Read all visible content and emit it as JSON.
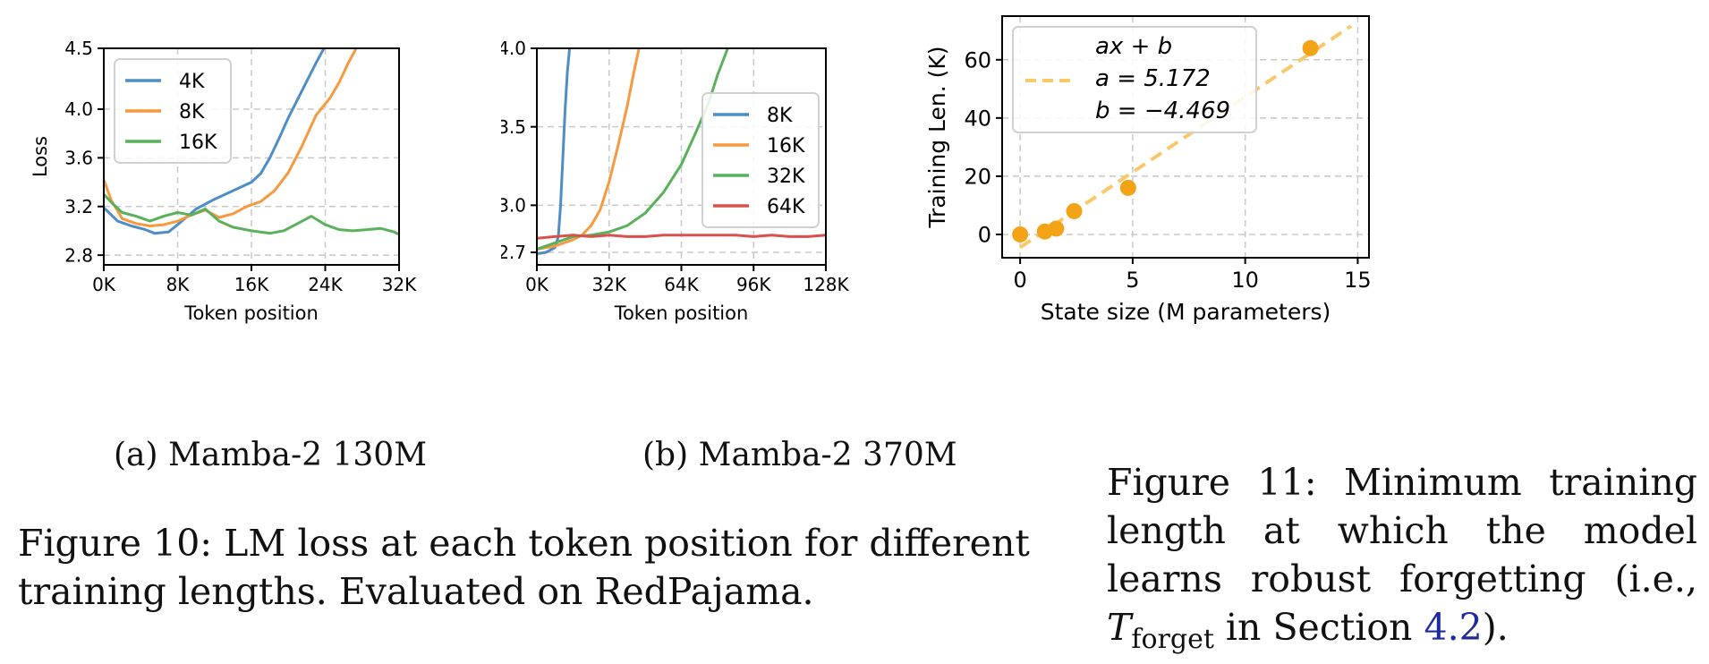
{
  "colors": {
    "4K": "#4e8dc6",
    "8K": "#f6993f",
    "16K": "#5bb05b",
    "32K": "#5bb05b",
    "64K": "#d9504c",
    "fit": "#f9c86b",
    "point": "#f3a316",
    "grid": "#c8c8c8"
  },
  "chart_data": [
    {
      "id": "a",
      "type": "line",
      "xlabel": "Token position",
      "ylabel": "Loss",
      "xlim": [
        0,
        32000
      ],
      "ylim": [
        2.72,
        4.5
      ],
      "xticks": [
        0,
        8000,
        16000,
        24000,
        32000
      ],
      "xticklabels": [
        "0K",
        "8K",
        "16K",
        "24K",
        "32K"
      ],
      "yticks": [
        2.8,
        3.2,
        3.6,
        4.0,
        4.5
      ],
      "yticklabels": [
        "2.8",
        "3.2",
        "3.6",
        "4.0",
        "4.5"
      ],
      "grid": true,
      "legend": "top-left",
      "series": [
        {
          "name": "4K",
          "color_key": "4K",
          "x": [
            0,
            1500,
            3000,
            4500,
            5500,
            7000,
            8000,
            10000,
            12000,
            14000,
            16000,
            17000,
            18000,
            19000,
            20000,
            21000,
            22000,
            23000,
            24000
          ],
          "y": [
            3.19,
            3.08,
            3.04,
            3.01,
            2.98,
            2.99,
            3.05,
            3.18,
            3.26,
            3.33,
            3.4,
            3.47,
            3.6,
            3.76,
            3.93,
            4.08,
            4.23,
            4.38,
            4.52
          ]
        },
        {
          "name": "8K",
          "color_key": "8K",
          "x": [
            0,
            800,
            2000,
            3500,
            5000,
            6500,
            8000,
            9500,
            11000,
            12500,
            14000,
            15500,
            17000,
            18500,
            20000,
            21500,
            23000,
            24500,
            25500,
            26500,
            27500
          ],
          "y": [
            3.42,
            3.25,
            3.1,
            3.06,
            3.04,
            3.05,
            3.08,
            3.13,
            3.17,
            3.11,
            3.14,
            3.2,
            3.24,
            3.33,
            3.48,
            3.7,
            3.95,
            4.09,
            4.22,
            4.38,
            4.52
          ]
        },
        {
          "name": "16K",
          "color_key": "16K",
          "x": [
            0,
            1000,
            2000,
            3500,
            5000,
            6500,
            8000,
            9500,
            11000,
            12500,
            14000,
            16000,
            18000,
            19500,
            21000,
            22500,
            24000,
            25500,
            27000,
            28500,
            30000,
            31500,
            32000
          ],
          "y": [
            3.3,
            3.22,
            3.15,
            3.12,
            3.08,
            3.12,
            3.15,
            3.13,
            3.18,
            3.08,
            3.03,
            3.0,
            2.98,
            3.0,
            3.06,
            3.12,
            3.05,
            3.01,
            3.0,
            3.01,
            3.02,
            2.99,
            2.97
          ]
        }
      ]
    },
    {
      "id": "b",
      "type": "line",
      "xlabel": "Token position",
      "ylabel": "Loss",
      "xlim": [
        0,
        128000
      ],
      "ylim": [
        2.62,
        4.0
      ],
      "xticks": [
        0,
        32000,
        64000,
        96000,
        128000
      ],
      "xticklabels": [
        "0K",
        "32K",
        "64K",
        "96K",
        "128K"
      ],
      "yticks": [
        2.7,
        3.0,
        3.5,
        4.0
      ],
      "yticklabels": [
        "2.7",
        "3.0",
        "3.5",
        "4.0"
      ],
      "grid": true,
      "legend": "center-right",
      "series": [
        {
          "name": "8K",
          "color_key": "4K",
          "x": [
            0,
            4000,
            8000,
            9500,
            10500,
            11500,
            12500,
            13500,
            14500,
            15500
          ],
          "y": [
            2.69,
            2.7,
            2.73,
            2.8,
            3.0,
            3.3,
            3.6,
            3.85,
            4.0,
            4.1
          ]
        },
        {
          "name": "16K",
          "color_key": "8K",
          "x": [
            0,
            8000,
            16000,
            20000,
            24000,
            28000,
            32000,
            36000,
            40000,
            43000,
            46000
          ],
          "y": [
            2.72,
            2.74,
            2.78,
            2.81,
            2.87,
            2.97,
            3.15,
            3.38,
            3.63,
            3.85,
            4.05
          ]
        },
        {
          "name": "32K",
          "color_key": "32K",
          "x": [
            0,
            8000,
            16000,
            24000,
            32000,
            40000,
            48000,
            56000,
            64000,
            70000,
            76000,
            80000,
            84000,
            86000
          ],
          "y": [
            2.72,
            2.76,
            2.8,
            2.81,
            2.83,
            2.87,
            2.95,
            3.08,
            3.26,
            3.45,
            3.65,
            3.83,
            3.98,
            4.06
          ]
        },
        {
          "name": "64K",
          "color_key": "64K",
          "x": [
            0,
            8000,
            16000,
            24000,
            32000,
            40000,
            48000,
            56000,
            64000,
            72000,
            80000,
            88000,
            96000,
            104000,
            112000,
            120000,
            128000
          ],
          "y": [
            2.79,
            2.8,
            2.81,
            2.8,
            2.81,
            2.8,
            2.8,
            2.81,
            2.81,
            2.81,
            2.81,
            2.81,
            2.8,
            2.81,
            2.8,
            2.8,
            2.81
          ]
        }
      ]
    },
    {
      "id": "fig11",
      "type": "scatter",
      "xlabel": "State size (M parameters)",
      "ylabel": "Training Len. (K)",
      "xlim": [
        -0.8,
        15.5
      ],
      "ylim": [
        -8,
        75
      ],
      "xticks": [
        0,
        5,
        10,
        15
      ],
      "xticklabels": [
        "0",
        "5",
        "10",
        "15"
      ],
      "yticks": [
        0,
        20,
        40,
        60
      ],
      "yticklabels": [
        "0",
        "20",
        "40",
        "60"
      ],
      "grid": true,
      "legend": "top-left",
      "points": [
        {
          "x": 0.0,
          "y": 0
        },
        {
          "x": 1.1,
          "y": 1
        },
        {
          "x": 1.6,
          "y": 2
        },
        {
          "x": 2.4,
          "y": 8
        },
        {
          "x": 4.8,
          "y": 16
        },
        {
          "x": 12.9,
          "y": 64
        }
      ],
      "fit": {
        "a": 5.172,
        "b": -4.469,
        "x_from": 0.0,
        "x_to": 14.7
      },
      "legend_lines": [
        "ax + b",
        "a = 5.172",
        "b = −4.469"
      ]
    }
  ],
  "captions": {
    "sub_a": "(a) Mamba-2 130M",
    "sub_b": "(b) Mamba-2 370M",
    "fig10": "Figure 10: LM loss at each token position for different training lengths. Evaluated on RedPajama.",
    "fig11_pre": "Figure 11: Minimum training length at which the model learns robust forgetting (i.e., ",
    "fig11_T": "T",
    "fig11_sub": "forget",
    "fig11_mid": " in Section ",
    "fig11_ref": "4.2",
    "fig11_post": ")."
  }
}
